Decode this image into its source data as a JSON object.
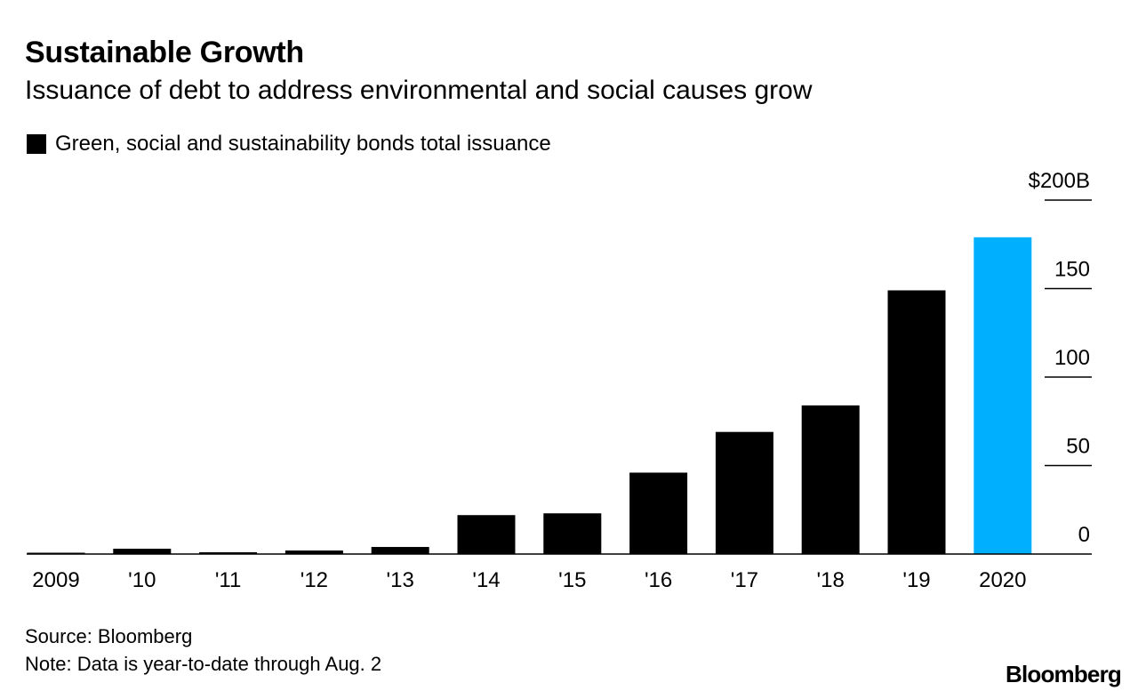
{
  "colors": {
    "bar_default": "#000000",
    "bar_highlight": "#00b0ff",
    "text": "#000000",
    "background": "#ffffff"
  },
  "footer": {
    "source": "Source: Bloomberg",
    "note": "Note: Data is year-to-date through Aug. 2",
    "brand": "Bloomberg"
  },
  "chart_data": {
    "type": "bar",
    "title": "Sustainable Growth",
    "subtitle": "Issuance of debt to address environmental and social causes grow",
    "legend": [
      {
        "label": "Green, social and sustainability bonds total issuance",
        "color": "#000000"
      }
    ],
    "categories": [
      "2009",
      "'10",
      "'11",
      "'12",
      "'13",
      "'14",
      "'15",
      "'16",
      "'17",
      "'18",
      "'19",
      "2020"
    ],
    "series": [
      {
        "name": "Green, social and sustainability bonds total issuance",
        "values": [
          0.5,
          3,
          1,
          2,
          4,
          22,
          23,
          46,
          69,
          84,
          149,
          179
        ]
      }
    ],
    "highlight_index": 11,
    "ylim": [
      0,
      200
    ],
    "yticks": [
      {
        "value": 0,
        "label": "0"
      },
      {
        "value": 50,
        "label": "50"
      },
      {
        "value": 100,
        "label": "100"
      },
      {
        "value": 150,
        "label": "150"
      },
      {
        "value": 200,
        "label": "$200B"
      }
    ],
    "y_axis_position": "right",
    "grid": false
  }
}
